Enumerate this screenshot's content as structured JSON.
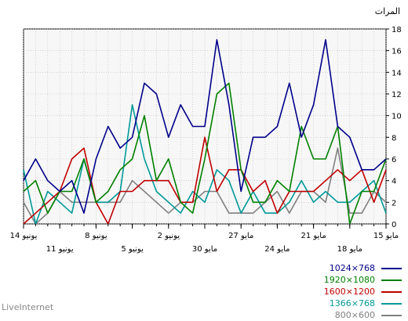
{
  "chart_data": {
    "type": "line",
    "ylabel": "المرات",
    "ylim": [
      0,
      18
    ],
    "yticks": [
      0,
      2,
      4,
      6,
      8,
      10,
      12,
      14,
      16,
      18
    ],
    "grid": true,
    "x_dates": [
      "14 يونيو",
      "13 يونيو",
      "12 يونيو",
      "11 يونيو",
      "10 يونيو",
      "9 يونيو",
      "8 يونيو",
      "7 يونيو",
      "6 يونيو",
      "5 يونيو",
      "4 يونيو",
      "3 يونيو",
      "2 يونيو",
      "1 يونيو",
      "31 مايو",
      "30 مايو",
      "29 مايو",
      "28 مايو",
      "27 مايو",
      "26 مايو",
      "25 مايو",
      "24 مايو",
      "23 مايو",
      "22 مايو",
      "21 مايو",
      "20 مايو",
      "19 مايو",
      "18 مايو",
      "17 مايو",
      "16 مايو",
      "15 مايو"
    ],
    "xticks_upper": [
      {
        "index": 0,
        "label": "14 يونيو"
      },
      {
        "index": 6,
        "label": "8 يونيو"
      },
      {
        "index": 12,
        "label": "2 يونيو"
      },
      {
        "index": 18,
        "label": "27 مايو"
      },
      {
        "index": 24,
        "label": "21 مايو"
      },
      {
        "index": 30,
        "label": "15 مايو"
      }
    ],
    "xticks_lower": [
      {
        "index": 3,
        "label": "11 يونيو"
      },
      {
        "index": 9,
        "label": "5 يونيو"
      },
      {
        "index": 15,
        "label": "30 مايو"
      },
      {
        "index": 21,
        "label": "24 مايو"
      },
      {
        "index": 27,
        "label": "18 مايو"
      }
    ],
    "series": [
      {
        "name": "1024×768",
        "color": "#00008b",
        "values": [
          4,
          6,
          4,
          3,
          4,
          1,
          6,
          9,
          7,
          8,
          13,
          12,
          8,
          11,
          9,
          9,
          17,
          11,
          3,
          8,
          8,
          9,
          13,
          8,
          11,
          17,
          9,
          8,
          5,
          5,
          6
        ]
      },
      {
        "name": "1920×1080",
        "color": "#008000",
        "values": [
          3,
          4,
          1,
          3,
          3,
          6,
          2,
          3,
          5,
          6,
          10,
          4,
          6,
          2,
          1,
          6,
          12,
          13,
          5,
          2,
          2,
          4,
          3,
          9,
          6,
          6,
          9,
          0,
          3,
          3,
          6
        ]
      },
      {
        "name": "1600×1200",
        "color": "#c00000",
        "values": [
          0,
          1,
          2,
          3,
          6,
          7,
          2,
          0,
          3,
          3,
          4,
          4,
          4,
          2,
          2,
          8,
          3,
          5,
          5,
          3,
          4,
          1,
          3,
          3,
          3,
          4,
          5,
          4,
          5,
          2,
          5
        ]
      },
      {
        "name": "1366×768",
        "color": "#009999",
        "values": [
          5,
          0,
          3,
          2,
          1,
          6,
          2,
          2,
          3,
          11,
          6,
          3,
          2,
          1,
          3,
          2,
          5,
          4,
          1,
          3,
          1,
          1,
          2,
          4,
          2,
          3,
          2,
          2,
          3,
          4,
          1
        ]
      },
      {
        "name": "800×600",
        "color": "#808080",
        "values": [
          2,
          0,
          1,
          3,
          2,
          2,
          2,
          2,
          2,
          4,
          3,
          2,
          1,
          2,
          2,
          3,
          3,
          1,
          1,
          1,
          2,
          3,
          1,
          3,
          3,
          2,
          7,
          1,
          1,
          3,
          2
        ]
      }
    ]
  },
  "watermark": "LiveInternet"
}
